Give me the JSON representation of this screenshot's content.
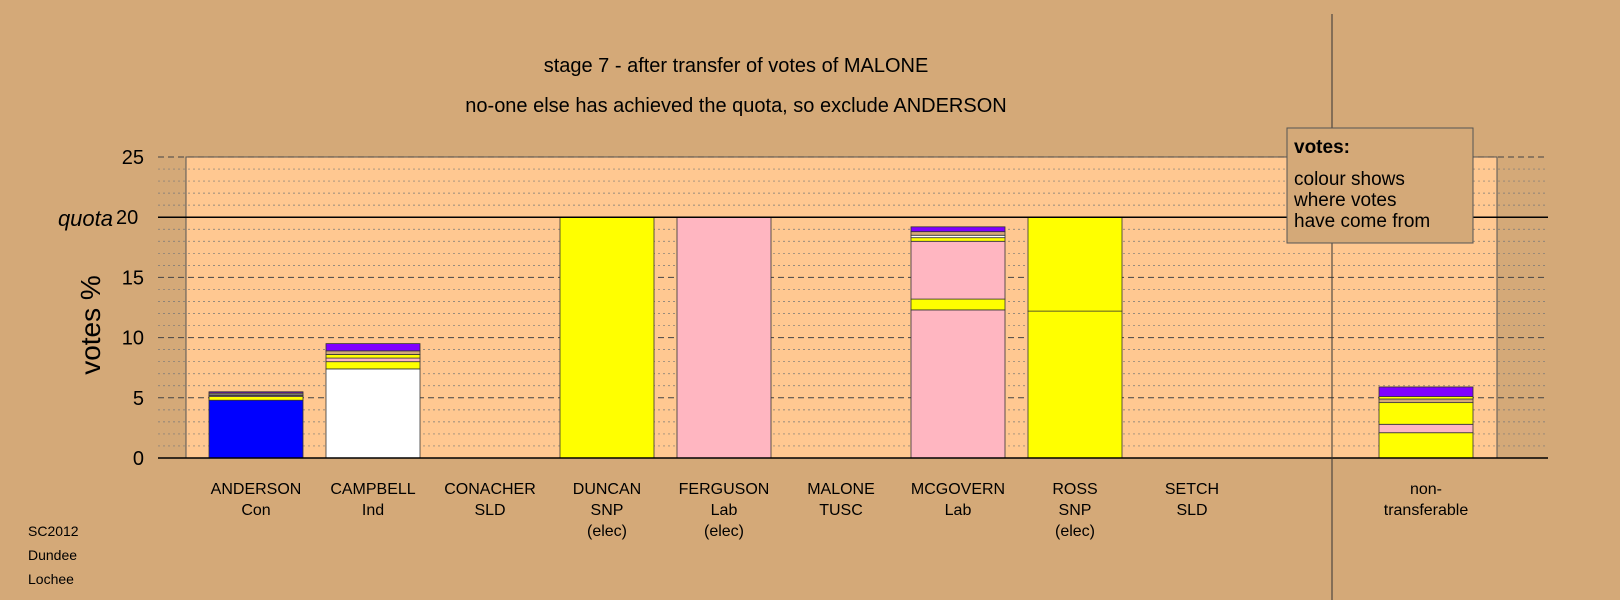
{
  "chart_data": {
    "type": "bar",
    "stacked": true,
    "title": "stage 7 - after transfer of votes of MALONE",
    "subtitle": "no-one else has achieved the quota, so exclude ANDERSON",
    "xlabel": "",
    "ylabel": "votes %",
    "ylim": [
      0,
      25
    ],
    "yticks": [
      0,
      5,
      10,
      15,
      20,
      25
    ],
    "quota": 20,
    "quota_label": "quota",
    "grid": true,
    "categories": [
      {
        "name": "ANDERSON",
        "party": "Con",
        "note": ""
      },
      {
        "name": "CAMPBELL",
        "party": "Ind",
        "note": ""
      },
      {
        "name": "CONACHER",
        "party": "SLD",
        "note": ""
      },
      {
        "name": "DUNCAN",
        "party": "SNP",
        "note": "(elec)"
      },
      {
        "name": "FERGUSON",
        "party": "Lab",
        "note": "(elec)"
      },
      {
        "name": "MALONE",
        "party": "TUSC",
        "note": ""
      },
      {
        "name": "MCGOVERN",
        "party": "Lab",
        "note": ""
      },
      {
        "name": "ROSS",
        "party": "SNP",
        "note": "(elec)"
      },
      {
        "name": "SETCH",
        "party": "SLD",
        "note": ""
      },
      {
        "name": "non-",
        "party": "transferable",
        "note": ""
      }
    ],
    "stacks": [
      [
        {
          "color": "#0000FF",
          "value": 4.8
        },
        {
          "color": "#FFFF00",
          "value": 0.3
        },
        {
          "color": "#FFB6C1",
          "value": 0.1
        },
        {
          "color": "#FFFFFF",
          "value": 0.1
        },
        {
          "color": "#D4A978",
          "value": 0.1
        },
        {
          "color": "#8000FF",
          "value": 0.1
        }
      ],
      [
        {
          "color": "#FFFFFF",
          "value": 7.4
        },
        {
          "color": "#FFFF00",
          "value": 0.6
        },
        {
          "color": "#FFB6C1",
          "value": 0.3
        },
        {
          "color": "#FFFF00",
          "value": 0.3
        },
        {
          "color": "#D4A978",
          "value": 0.3
        },
        {
          "color": "#8000FF",
          "value": 0.6
        }
      ],
      [],
      [
        {
          "color": "#FFFF00",
          "value": 20.0
        }
      ],
      [
        {
          "color": "#FFB6C1",
          "value": 20.0
        }
      ],
      [],
      [
        {
          "color": "#FFB6C1",
          "value": 12.3
        },
        {
          "color": "#FFFF00",
          "value": 0.9
        },
        {
          "color": "#FFB6C1",
          "value": 4.8
        },
        {
          "color": "#FFFF00",
          "value": 0.3
        },
        {
          "color": "#FFFFFF",
          "value": 0.2
        },
        {
          "color": "#D4A978",
          "value": 0.3
        },
        {
          "color": "#8000FF",
          "value": 0.4
        }
      ],
      [
        {
          "color": "#FFFF00",
          "value": 12.2
        },
        {
          "color": "#FFFF00",
          "value": 7.8
        }
      ],
      [],
      [
        {
          "color": "#FFFF00",
          "value": 2.1
        },
        {
          "color": "#FFB6C1",
          "value": 0.7
        },
        {
          "color": "#FFFF00",
          "value": 1.8
        },
        {
          "color": "#D4A978",
          "value": 0.3
        },
        {
          "color": "#FFFF00",
          "value": 0.2
        },
        {
          "color": "#8000FF",
          "value": 0.8
        }
      ]
    ]
  },
  "legend": {
    "title": "votes:",
    "lines": [
      "colour shows",
      "where votes",
      "have come from"
    ]
  },
  "footer": [
    "SC2012",
    "Dundee",
    "Lochee"
  ],
  "colors": {
    "background": "#D4A978",
    "plot_background": "#FFC891"
  }
}
